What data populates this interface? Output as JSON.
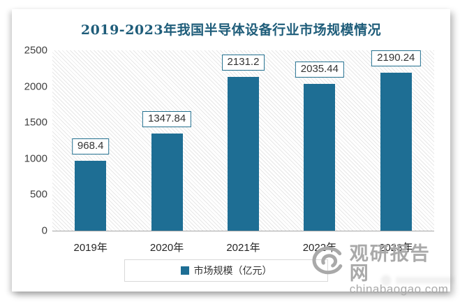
{
  "title": "2019-2023年我国半导体设备行业市场规模情况",
  "chart_data": {
    "type": "bar",
    "title": "2019-2023年我国半导体设备行业市场规模情况",
    "categories": [
      "2019年",
      "2020年",
      "2021年",
      "2022年",
      "2023年"
    ],
    "values": [
      968.4,
      1347.84,
      2131.2,
      2035.44,
      2190.24
    ],
    "series_name": "市场规模（亿元）",
    "xlabel": "",
    "ylabel": "",
    "ylim": [
      0,
      2500
    ],
    "yticks": [
      0,
      500,
      1000,
      1500,
      2000,
      2500
    ],
    "grid": false,
    "legend_position": "bottom",
    "data_labels": "boxed above bars"
  },
  "legend": {
    "label": "市场规模（亿元）"
  },
  "watermark": {
    "site_name": "观研报告网",
    "site_url": "chinabaogao.com",
    "logo": "swirl-eye-logo"
  },
  "colors": {
    "bar_color": "#1e6e94",
    "title_color": "#1f5d7a",
    "label_border": "#23708f",
    "axis_color": "#a6a6a6",
    "watermark_color": "#a9a9a9"
  }
}
